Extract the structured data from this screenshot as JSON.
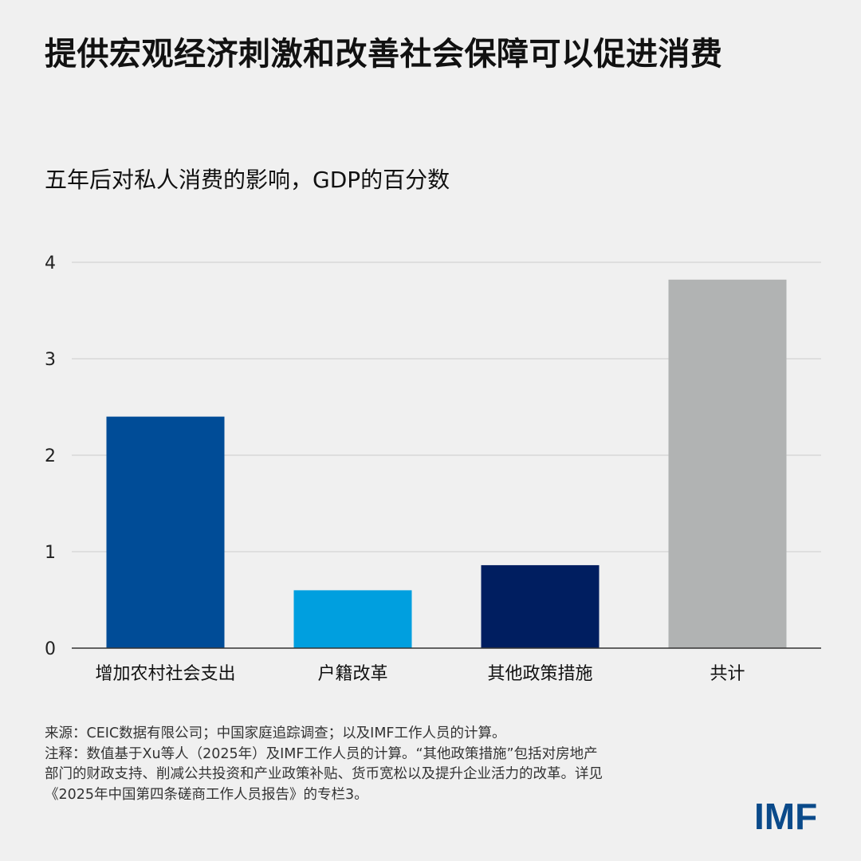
{
  "title": "提供宏观经济刺激和改善社会保障可以促进消费",
  "subtitle": "五年后对私人消费的影响，GDP的百分数",
  "chart_data": {
    "type": "bar",
    "title": "",
    "ylabel": "五年后对私人消费的影响，GDP的百分数",
    "xlabel": "",
    "categories": [
      "增加农村社会支出",
      "户籍改革",
      "其他政策措施",
      "共计"
    ],
    "values": [
      2.4,
      0.6,
      0.86,
      3.82
    ],
    "colors": [
      "#004c97",
      "#009fdf",
      "#001e60",
      "#b1b3b3"
    ],
    "ylim": [
      0,
      4
    ],
    "yticks": [
      "0",
      "1",
      "2",
      "3",
      "4"
    ],
    "grid": true,
    "legend": "none"
  },
  "notes": {
    "source": "来源：CEIC数据有限公司；中国家庭追踪调查；以及IMF工作人员的计算。",
    "note_line1": "注释：数值基于Xu等人（2025年）及IMF工作人员的计算。“其他政策措施”包括对房地产",
    "note_line2": "部门的财政支持、削减公共投资和产业政策补贴、货币宽松以及提升企业活力的改革。详见",
    "note_line3": "《2025年中国第四条磋商工作人员报告》的专栏3。"
  },
  "logo": {
    "text": "IMF",
    "color": "#0a4a8a"
  }
}
